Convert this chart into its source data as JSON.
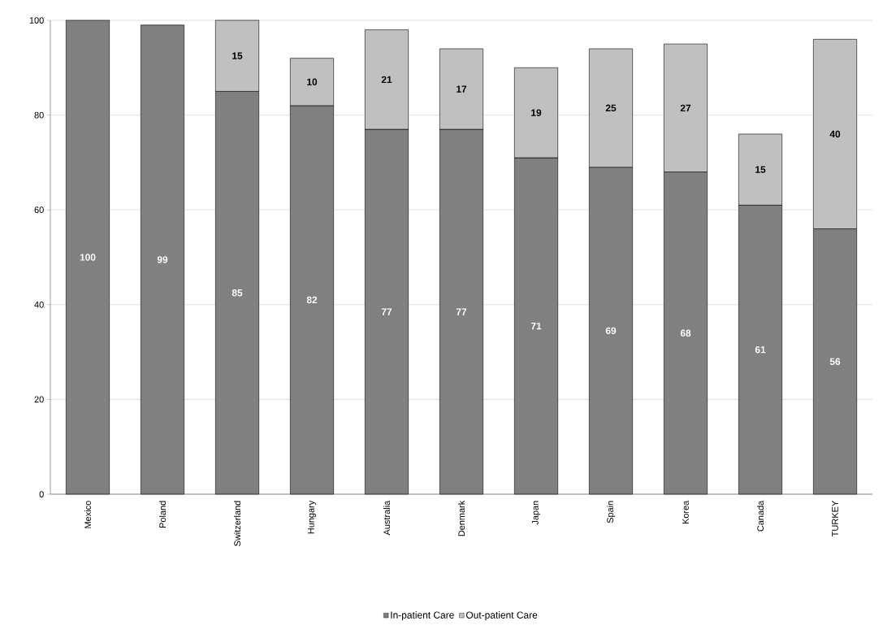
{
  "chart_data": {
    "type": "bar",
    "stacked": true,
    "categories": [
      "Mexico",
      "Poland",
      "Switzerland",
      "Hungary",
      "Australia",
      "Denmark",
      "Japan",
      "Spain",
      "Korea",
      "Canada",
      "TURKEY"
    ],
    "series": [
      {
        "name": "In-patient Care",
        "color": "#808080",
        "values": [
          100,
          99,
          85,
          82,
          77,
          77,
          71,
          69,
          68,
          61,
          56
        ]
      },
      {
        "name": "Out-patient Care",
        "color": "#c0c0c0",
        "values": [
          null,
          null,
          15,
          10,
          21,
          17,
          19,
          25,
          27,
          15,
          40
        ]
      }
    ],
    "ylim": [
      0,
      100
    ],
    "yticks": [
      0,
      20,
      40,
      60,
      80,
      100
    ],
    "grid": "y",
    "legend": "bottom",
    "data_labels": true
  }
}
